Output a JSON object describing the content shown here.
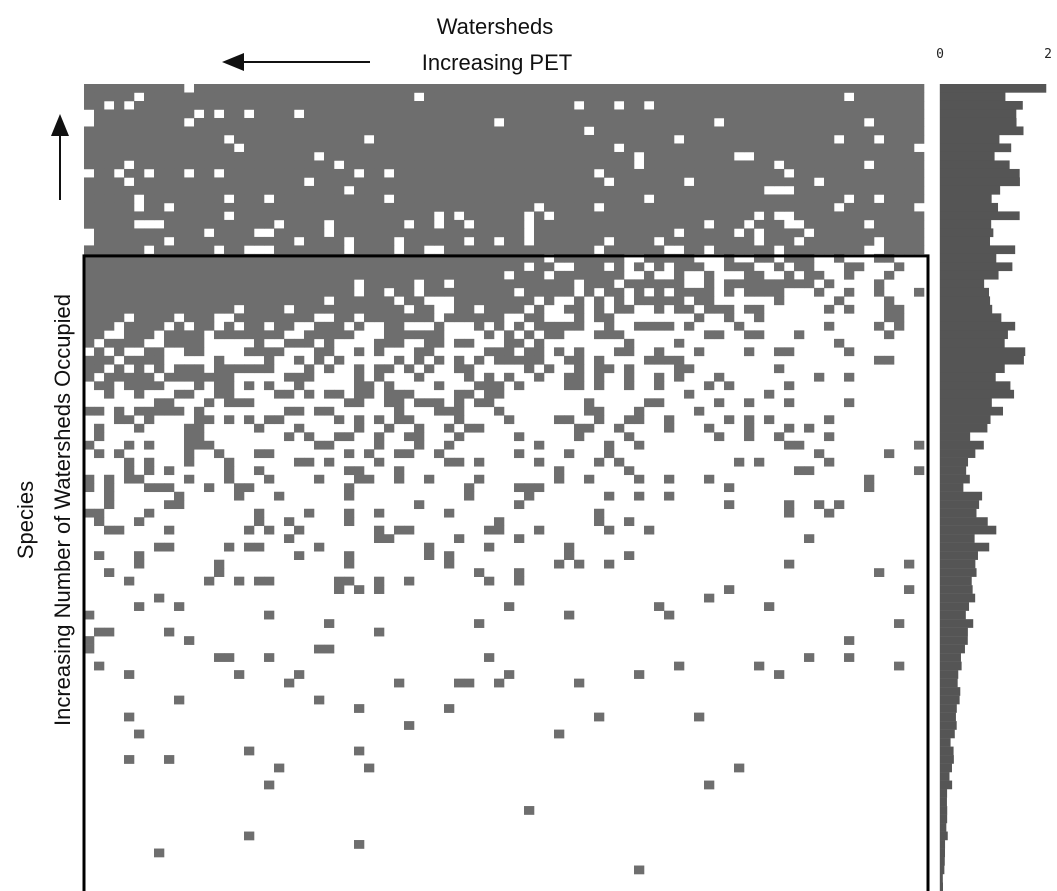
{
  "chart_data": [
    {
      "type": "heatmap",
      "title": "",
      "xlabel": [
        "Watersheds",
        "Increasing PET"
      ],
      "ylabel": [
        "Species",
        "Increasing Number of Watersheds Occupied"
      ],
      "x_direction": "right-to-left",
      "y_direction": "bottom-to-top",
      "n_columns": 84,
      "n_rows": 95,
      "cell_color": "#6e6e6e",
      "background_color": "#ffffff",
      "highlight_box": {
        "row_range": [
          20,
          94
        ],
        "col_range": [
          0,
          83
        ],
        "stroke": "#000000"
      },
      "occupancy_profile_by_row_fraction": [
        [
          0.0,
          0.97
        ],
        [
          0.1,
          0.93
        ],
        [
          0.2,
          0.85
        ],
        [
          0.27,
          0.55
        ],
        [
          0.32,
          0.36
        ],
        [
          0.38,
          0.28
        ],
        [
          0.45,
          0.18
        ],
        [
          0.52,
          0.12
        ],
        [
          0.6,
          0.07
        ],
        [
          0.7,
          0.04
        ],
        [
          0.8,
          0.025
        ],
        [
          0.9,
          0.015
        ],
        [
          1.0,
          0.01
        ]
      ]
    },
    {
      "type": "bar",
      "orientation": "horizontal",
      "title": "",
      "tick_labels": [
        "0",
        "2"
      ],
      "xlim": [
        0,
        2
      ],
      "bar_color": "#555555",
      "n_bars": 95,
      "values_by_row_fraction": [
        [
          0.0,
          1.6
        ],
        [
          0.05,
          1.3
        ],
        [
          0.1,
          1.25
        ],
        [
          0.2,
          1.1
        ],
        [
          0.28,
          0.95
        ],
        [
          0.3,
          1.25
        ],
        [
          0.38,
          1.35
        ],
        [
          0.42,
          0.7
        ],
        [
          0.5,
          0.55
        ],
        [
          0.55,
          0.85
        ],
        [
          0.6,
          0.6
        ],
        [
          0.65,
          0.55
        ],
        [
          0.7,
          0.4
        ],
        [
          0.78,
          0.3
        ],
        [
          0.85,
          0.2
        ],
        [
          0.9,
          0.15
        ],
        [
          1.0,
          0.05
        ]
      ]
    }
  ]
}
